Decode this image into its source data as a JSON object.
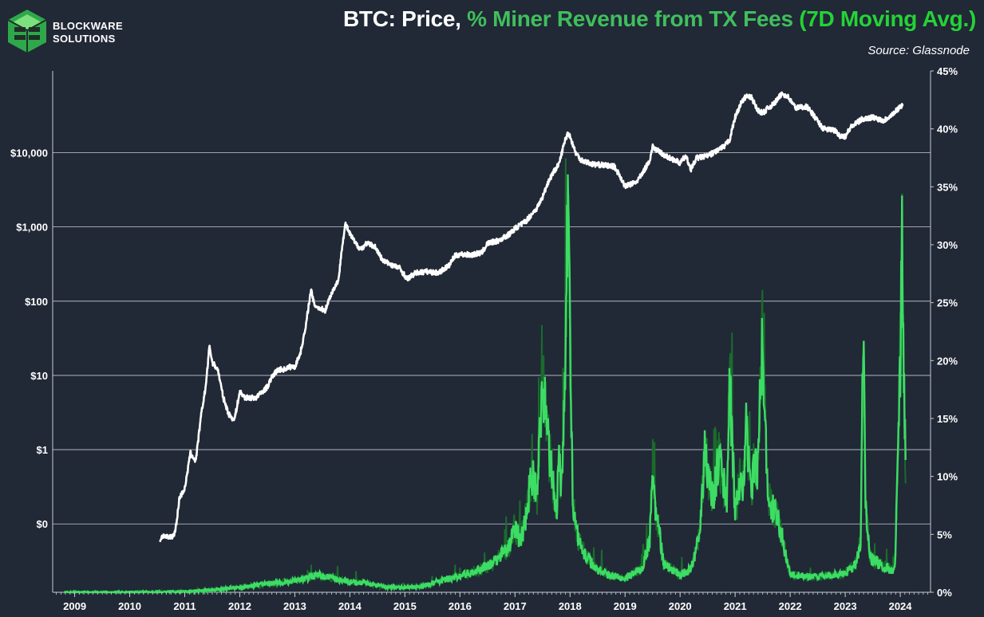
{
  "brand": {
    "name_line1": "BLOCKWARE",
    "name_line2": "SOLUTIONS",
    "logo_color": "#2ea84a"
  },
  "title": {
    "part1": "BTC: Price, ",
    "part2": "% Miner Revenue from TX Fees ",
    "part3": "(7D Moving Avg.)"
  },
  "source": "Source: Glassnode",
  "colors": {
    "background": "#212836",
    "price_line": "#ffffff",
    "fee_pct_raw": "#1a6b2c",
    "fee_pct_7d": "#3ddc64",
    "grid": "#c8ccd4"
  },
  "chart_data": {
    "type": "line",
    "x_range": [
      2008.6,
      2024.55
    ],
    "x_ticks": [
      "2009",
      "2010",
      "2011",
      "2012",
      "2013",
      "2014",
      "2015",
      "2016",
      "2017",
      "2018",
      "2019",
      "2020",
      "2021",
      "2022",
      "2023",
      "2024"
    ],
    "left_axis": {
      "scale": "log",
      "ylim": [
        0.012,
        126000
      ],
      "ticks": [
        {
          "value": 0.1,
          "label": "$0"
        },
        {
          "value": 1,
          "label": "$1"
        },
        {
          "value": 10,
          "label": "$10"
        },
        {
          "value": 100,
          "label": "$100"
        },
        {
          "value": 1000,
          "label": "$1,000"
        },
        {
          "value": 10000,
          "label": "$10,000"
        }
      ]
    },
    "right_axis": {
      "scale": "linear",
      "ylim": [
        0,
        45
      ],
      "ticks": [
        {
          "value": 0,
          "label": "0%"
        },
        {
          "value": 5,
          "label": "5%"
        },
        {
          "value": 10,
          "label": "10%"
        },
        {
          "value": 15,
          "label": "15%"
        },
        {
          "value": 20,
          "label": "20%"
        },
        {
          "value": 25,
          "label": "25%"
        },
        {
          "value": 30,
          "label": "30%"
        },
        {
          "value": 35,
          "label": "35%"
        },
        {
          "value": 40,
          "label": "40%"
        },
        {
          "value": 45,
          "label": "45%"
        }
      ]
    },
    "grid": "horizontal at left-axis ticks",
    "legend": "none",
    "series": [
      {
        "axis": "left",
        "x": [
          2010.55,
          2010.6,
          2010.7,
          2010.8,
          2010.85,
          2010.9,
          2011.0,
          2011.05,
          2011.1,
          2011.2,
          2011.3,
          2011.38,
          2011.45,
          2011.5,
          2011.6,
          2011.7,
          2011.8,
          2011.9,
          2012.0,
          2012.1,
          2012.3,
          2012.5,
          2012.6,
          2012.7,
          2012.8,
          2012.9,
          2013.0,
          2013.1,
          2013.2,
          2013.26,
          2013.3,
          2013.35,
          2013.45,
          2013.55,
          2013.65,
          2013.8,
          2013.85,
          2013.92,
          2014.0,
          2014.05,
          2014.1,
          2014.2,
          2014.3,
          2014.45,
          2014.6,
          2014.8,
          2014.9,
          2015.04,
          2015.2,
          2015.4,
          2015.6,
          2015.8,
          2015.9,
          2016.0,
          2016.2,
          2016.4,
          2016.5,
          2016.7,
          2016.9,
          2017.0,
          2017.2,
          2017.4,
          2017.5,
          2017.6,
          2017.7,
          2017.8,
          2017.9,
          2017.97,
          2018.05,
          2018.1,
          2018.2,
          2018.4,
          2018.6,
          2018.8,
          2018.9,
          2019.0,
          2019.2,
          2019.3,
          2019.45,
          2019.5,
          2019.6,
          2019.8,
          2019.9,
          2020.0,
          2020.1,
          2020.2,
          2020.3,
          2020.5,
          2020.7,
          2020.8,
          2020.9,
          2021.0,
          2021.1,
          2021.2,
          2021.3,
          2021.4,
          2021.5,
          2021.6,
          2021.7,
          2021.85,
          2021.95,
          2022.1,
          2022.3,
          2022.45,
          2022.6,
          2022.8,
          2022.9,
          2023.0,
          2023.1,
          2023.3,
          2023.5,
          2023.7,
          2023.9,
          2024.0,
          2024.05
        ],
        "y": [
          0.06,
          0.07,
          0.065,
          0.07,
          0.1,
          0.22,
          0.3,
          0.5,
          0.9,
          0.7,
          3,
          7,
          25,
          15,
          12,
          5,
          3,
          2.5,
          6,
          5,
          5,
          7,
          10,
          12,
          12,
          13,
          13,
          20,
          45,
          100,
          140,
          90,
          80,
          75,
          120,
          200,
          500,
          1100,
          800,
          700,
          600,
          500,
          600,
          550,
          350,
          300,
          280,
          200,
          240,
          250,
          240,
          300,
          400,
          430,
          420,
          450,
          600,
          650,
          800,
          950,
          1200,
          1800,
          2500,
          4000,
          5500,
          7000,
          14000,
          19000,
          13000,
          10000,
          8000,
          7000,
          6800,
          6500,
          5000,
          3500,
          4000,
          5000,
          8000,
          12000,
          10500,
          8500,
          8000,
          7200,
          9000,
          6000,
          8500,
          9000,
          11000,
          12000,
          15000,
          30000,
          45000,
          58000,
          55000,
          38000,
          34000,
          40000,
          45000,
          62000,
          58000,
          40000,
          42000,
          30000,
          21000,
          20000,
          17000,
          16500,
          22000,
          28000,
          30000,
          27000,
          35000,
          42000,
          44000
        ],
        "name": ""
      },
      {
        "axis": "right",
        "x": [
          2008.8,
          2010.0,
          2011.0,
          2011.5,
          2012.0,
          2012.3,
          2012.6,
          2012.9,
          2013.0,
          2013.2,
          2013.4,
          2013.6,
          2013.8,
          2014.0,
          2014.3,
          2014.6,
          2015.0,
          2015.3,
          2015.5,
          2015.8,
          2016.0,
          2016.2,
          2016.5,
          2016.7,
          2016.9,
          2017.0,
          2017.1,
          2017.2,
          2017.3,
          2017.4,
          2017.45,
          2017.5,
          2017.55,
          2017.6,
          2017.7,
          2017.75,
          2017.8,
          2017.85,
          2017.9,
          2017.93,
          2017.96,
          2018.0,
          2018.05,
          2018.15,
          2018.3,
          2018.5,
          2018.7,
          2019.0,
          2019.3,
          2019.45,
          2019.5,
          2019.55,
          2019.7,
          2020.0,
          2020.2,
          2020.35,
          2020.45,
          2020.6,
          2020.7,
          2020.85,
          2020.9,
          2021.0,
          2021.1,
          2021.15,
          2021.2,
          2021.3,
          2021.35,
          2021.4,
          2021.5,
          2021.6,
          2021.8,
          2022.0,
          2022.5,
          2023.0,
          2023.2,
          2023.28,
          2023.33,
          2023.37,
          2023.45,
          2023.6,
          2023.8,
          2023.9,
          2023.95,
          2024.0,
          2024.03,
          2024.07,
          2024.1
        ],
        "y": [
          0,
          0,
          0.05,
          0.2,
          0.4,
          0.6,
          0.8,
          0.9,
          1.0,
          1.2,
          1.5,
          1.3,
          1.1,
          0.9,
          0.8,
          0.5,
          0.4,
          0.5,
          0.8,
          1.2,
          1.4,
          1.7,
          2.2,
          3.0,
          4.0,
          5.5,
          4.5,
          6.5,
          10.5,
          8.0,
          13.0,
          19.0,
          16.0,
          13.0,
          9.0,
          6.5,
          11.0,
          9.5,
          16.0,
          25.0,
          35.0,
          22.0,
          8.0,
          4.5,
          3.0,
          2.0,
          1.5,
          1.2,
          2.0,
          4.5,
          11.5,
          7.5,
          2.5,
          1.5,
          2.0,
          5.0,
          12.0,
          8.0,
          11.5,
          8.0,
          18.5,
          7.0,
          10.0,
          9.5,
          14.0,
          8.0,
          12.0,
          10.5,
          22.0,
          8.0,
          6.0,
          1.5,
          1.3,
          1.6,
          2.5,
          4.5,
          23.0,
          8.0,
          3.0,
          2.5,
          2.0,
          1.8,
          10.0,
          20.0,
          31.5,
          18.0,
          9.5
        ],
        "name": ""
      }
    ]
  }
}
